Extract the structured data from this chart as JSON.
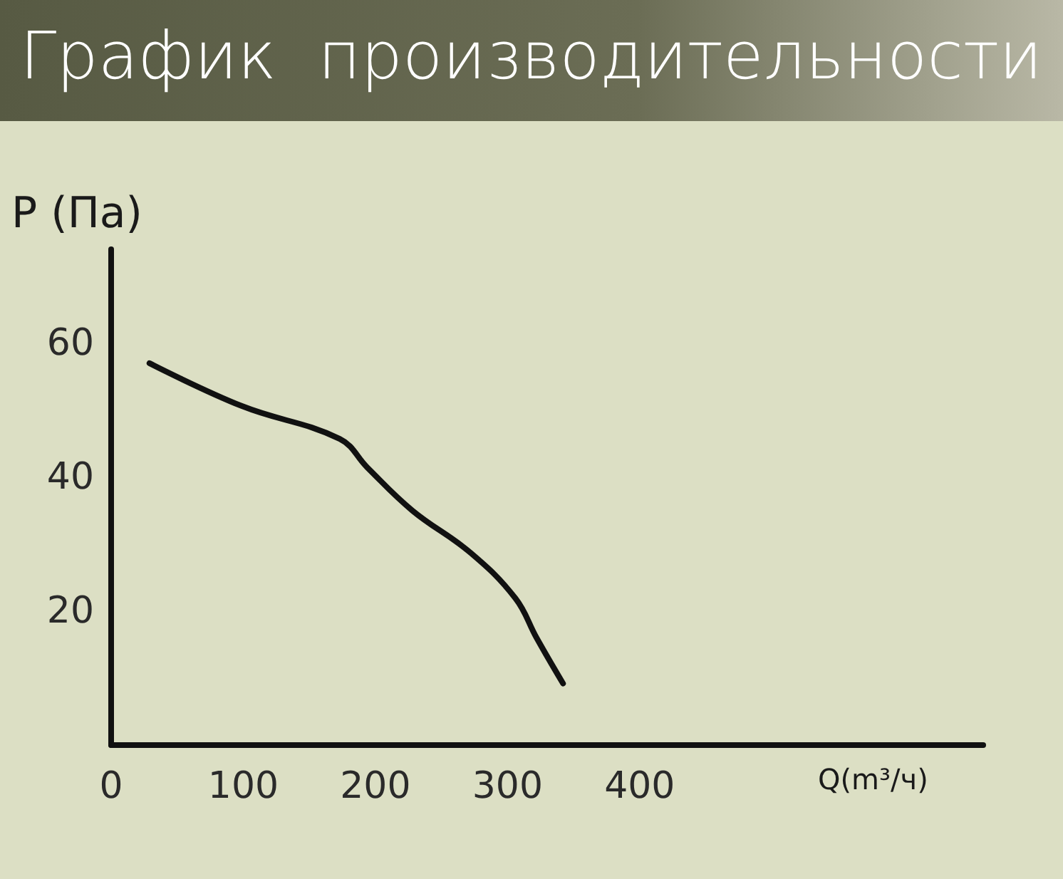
{
  "chart_data": {
    "type": "line",
    "title": "График  производительности",
    "xlabel": "Q(m³/ч)",
    "ylabel": "P (Па)",
    "x": [
      29,
      99,
      173,
      194,
      228,
      272,
      306,
      322,
      342
    ],
    "series": [
      {
        "color": "#111111",
        "values": [
          57,
          50.6,
          45.7,
          41.4,
          35,
          28.7,
          21.9,
          16,
          9.2
        ]
      }
    ],
    "xlim": [
      0,
      660
    ],
    "xticks": [
      0,
      100,
      200,
      300,
      400
    ],
    "ylim": [
      0,
      74
    ],
    "yticks": [
      20,
      40,
      60
    ],
    "grid": false,
    "marker": "none",
    "line_style": "solid"
  }
}
